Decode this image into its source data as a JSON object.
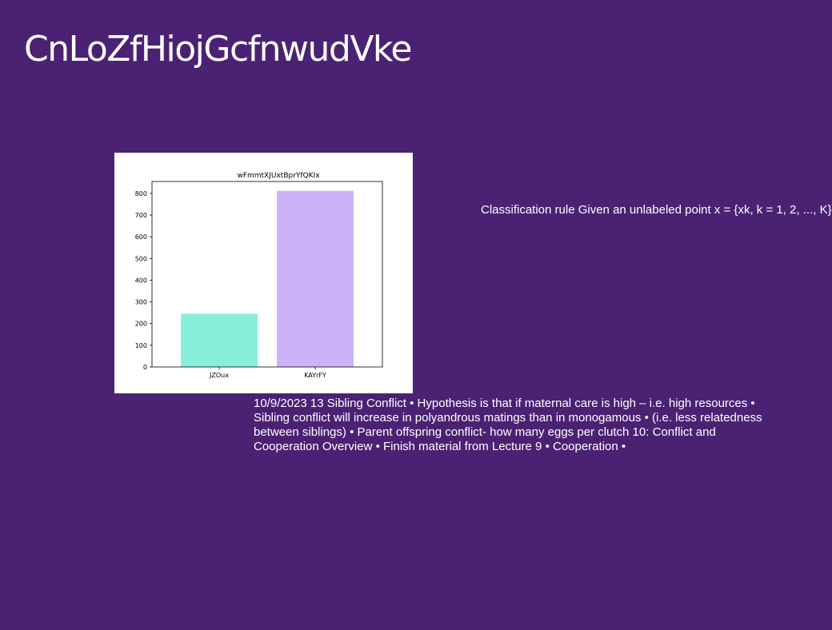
{
  "slide": {
    "title": "CnLoZfHiojGcfnwudVke",
    "side_text": "Classification rule Given an unlabeled point x = {xk, k = 1, 2, ..., K}",
    "body_text": "10/9/2023 13 Sibling Conflict • Hypothesis is that if maternal care is high – i.e. high resources • Sibling conflict will increase in polyandrous matings than in monogamous • (i.e. less relatedness between siblings) • Parent offspring conflict- how many eggs per clutch 10: Conflict and Cooperation Overview • Finish material from Lecture 9 • Cooperation •"
  },
  "colors": {
    "background": "#4b2273",
    "text": "#ffffff"
  },
  "chart_data": {
    "type": "bar",
    "title": "wFmmtXJUxtBprYfQKIx",
    "categories": [
      "JZOux",
      "KAYrFY"
    ],
    "values": [
      245,
      812
    ],
    "bar_colors": [
      "#86eedb",
      "#ccb3f7"
    ],
    "xlabel": "",
    "ylabel": "",
    "ylim": [
      0,
      855
    ],
    "yticks": [
      0,
      100,
      200,
      300,
      400,
      500,
      600,
      700,
      800
    ],
    "grid": false
  }
}
